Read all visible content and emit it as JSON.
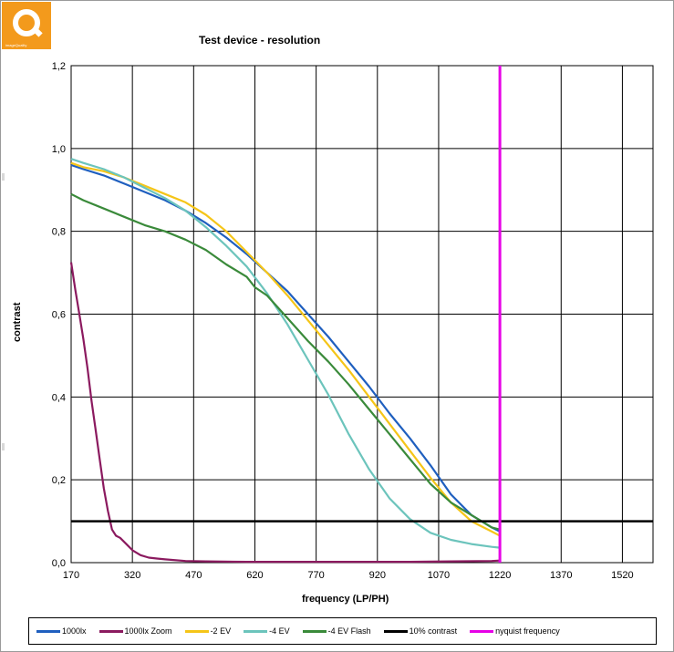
{
  "logo_text": "imageQuality",
  "chart_data": {
    "type": "line",
    "title": "Test device - resolution",
    "xlabel": "frequency (LP/PH)",
    "ylabel": "contrast",
    "xlim": [
      170,
      1595
    ],
    "ylim": [
      0,
      1.2
    ],
    "xticks": [
      "170",
      "320",
      "470",
      "620",
      "770",
      "920",
      "1070",
      "1220",
      "1370",
      "1520"
    ],
    "yticks": [
      "0,0",
      "0,2",
      "0,4",
      "0,6",
      "0,8",
      "1,0",
      "1,2"
    ],
    "grid": true,
    "legend_position": "bottom",
    "series": [
      {
        "name": "1000lx",
        "color": "#1f5fbf",
        "x": [
          170,
          200,
          250,
          300,
          350,
          400,
          450,
          500,
          550,
          600,
          650,
          700,
          750,
          800,
          850,
          900,
          950,
          1000,
          1050,
          1100,
          1150,
          1200,
          1220
        ],
        "y": [
          0.96,
          0.95,
          0.935,
          0.915,
          0.895,
          0.875,
          0.85,
          0.82,
          0.785,
          0.745,
          0.7,
          0.655,
          0.6,
          0.545,
          0.485,
          0.425,
          0.36,
          0.3,
          0.235,
          0.165,
          0.115,
          0.085,
          0.075
        ]
      },
      {
        "name": "1000lx Zoom",
        "color": "#8b1a5f",
        "x": [
          170,
          180,
          190,
          200,
          210,
          220,
          230,
          240,
          250,
          260,
          270,
          280,
          290,
          300,
          310,
          320,
          340,
          360,
          380,
          400,
          450,
          500,
          600,
          700,
          800,
          900,
          1000,
          1100,
          1200,
          1220
        ],
        "y": [
          0.725,
          0.66,
          0.6,
          0.54,
          0.47,
          0.39,
          0.32,
          0.25,
          0.18,
          0.125,
          0.08,
          0.065,
          0.06,
          0.05,
          0.04,
          0.03,
          0.018,
          0.012,
          0.01,
          0.008,
          0.004,
          0.003,
          0.002,
          0.002,
          0.002,
          0.002,
          0.002,
          0.003,
          0.004,
          0.005
        ]
      },
      {
        "name": "-2 EV",
        "color": "#f5c518",
        "x": [
          170,
          200,
          250,
          300,
          350,
          400,
          450,
          500,
          550,
          600,
          650,
          700,
          750,
          800,
          850,
          900,
          950,
          1000,
          1050,
          1100,
          1150,
          1200,
          1220
        ],
        "y": [
          0.965,
          0.955,
          0.945,
          0.93,
          0.91,
          0.89,
          0.87,
          0.84,
          0.8,
          0.75,
          0.7,
          0.645,
          0.585,
          0.525,
          0.465,
          0.4,
          0.335,
          0.27,
          0.205,
          0.145,
          0.1,
          0.075,
          0.065
        ]
      },
      {
        "name": "-4 EV",
        "color": "#6cc4bc",
        "x": [
          170,
          200,
          250,
          300,
          350,
          400,
          450,
          500,
          550,
          600,
          650,
          700,
          750,
          800,
          850,
          900,
          950,
          1000,
          1050,
          1100,
          1150,
          1200,
          1220
        ],
        "y": [
          0.975,
          0.965,
          0.95,
          0.93,
          0.905,
          0.88,
          0.85,
          0.81,
          0.765,
          0.715,
          0.65,
          0.575,
          0.49,
          0.405,
          0.31,
          0.225,
          0.155,
          0.105,
          0.072,
          0.055,
          0.045,
          0.038,
          0.036
        ]
      },
      {
        "name": "-4 EV Flash",
        "color": "#3a8a3a",
        "x": [
          170,
          200,
          250,
          300,
          350,
          400,
          450,
          500,
          550,
          600,
          620,
          650,
          700,
          750,
          800,
          850,
          900,
          950,
          1000,
          1050,
          1100,
          1150,
          1200,
          1220
        ],
        "y": [
          0.89,
          0.875,
          0.855,
          0.835,
          0.815,
          0.8,
          0.78,
          0.755,
          0.72,
          0.69,
          0.665,
          0.645,
          0.59,
          0.535,
          0.485,
          0.43,
          0.37,
          0.31,
          0.25,
          0.19,
          0.145,
          0.115,
          0.085,
          0.08
        ]
      },
      {
        "name": "10% contrast",
        "color": "#000000",
        "x": [
          170,
          1595
        ],
        "y": [
          0.1,
          0.1
        ]
      },
      {
        "name": "nyquist frequency",
        "color": "#e600e6",
        "x": [
          1220,
          1220
        ],
        "y": [
          0,
          1.2
        ]
      }
    ]
  }
}
